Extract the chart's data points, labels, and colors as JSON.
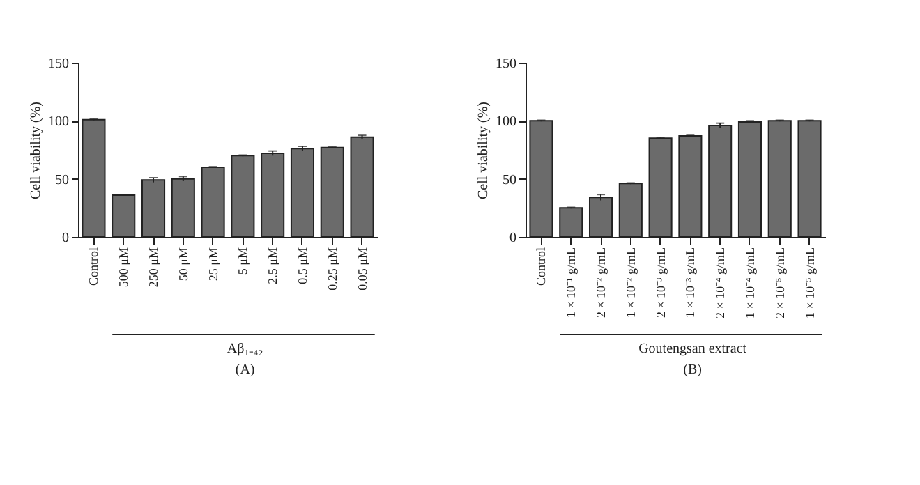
{
  "chart_data": [
    {
      "type": "bar",
      "ylabel": "Cell viability (%)",
      "xlabel": "Aβ₁₋₄₂",
      "annotations": [
        "(A)"
      ],
      "categories": [
        "Control",
        "500 μM",
        "250 μM",
        "50 μM",
        "25 μM",
        "5 μM",
        "2.5 μM",
        "0.5 μM",
        "0.25 μM",
        "0.05 μM"
      ],
      "values": [
        101,
        36,
        49,
        50,
        60,
        70,
        72,
        76,
        77,
        86
      ],
      "errors": [
        0.5,
        0.5,
        2,
        2,
        0.5,
        0.5,
        2,
        2,
        0.5,
        1.5
      ],
      "color": "#6b6b6b",
      "ylim": [
        0,
        150
      ],
      "yticks": [
        0,
        50,
        100,
        150
      ]
    },
    {
      "type": "bar",
      "ylabel": "Cell viability (%)",
      "xlabel": "Goutengsan extract",
      "annotations": [
        "(B)"
      ],
      "categories": [
        "Control",
        "1 × 10⁻¹ g/mL",
        "2 × 10⁻² g/mL",
        "1 × 10⁻² g/mL",
        "2 × 10⁻³ g/mL",
        "1 × 10⁻³ g/mL",
        "2 × 10⁻⁴ g/mL",
        "1 × 10⁻⁴ g/mL",
        "2 × 10⁻⁵ g/mL",
        "1 × 10⁻⁵ g/mL"
      ],
      "values": [
        100,
        25,
        34,
        46,
        85,
        87,
        96,
        99,
        100,
        100
      ],
      "errors": [
        0.5,
        0.5,
        2.5,
        0.5,
        0.5,
        0.5,
        2,
        1,
        0.5,
        0.5
      ],
      "color": "#6b6b6b",
      "ylim": [
        0,
        150
      ],
      "yticks": [
        0,
        50,
        100,
        150
      ]
    }
  ]
}
